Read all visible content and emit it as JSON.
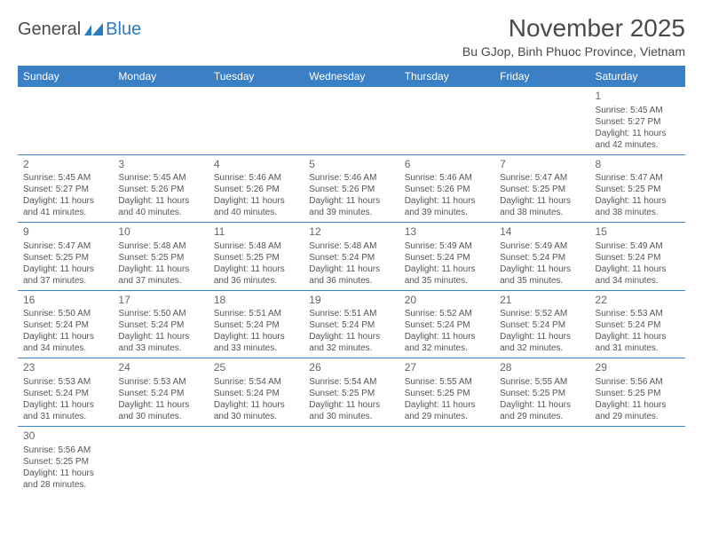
{
  "logo": {
    "text_dark": "General",
    "text_blue": "Blue"
  },
  "title": "November 2025",
  "location": "Bu GJop, Binh Phuoc Province, Vietnam",
  "colors": {
    "header_bg": "#3b7fc4",
    "header_text": "#ffffff",
    "border": "#3b7fc4",
    "text": "#555555",
    "title_text": "#4a4a4a",
    "logo_blue": "#2b7bbf"
  },
  "day_headers": [
    "Sunday",
    "Monday",
    "Tuesday",
    "Wednesday",
    "Thursday",
    "Friday",
    "Saturday"
  ],
  "weeks": [
    [
      null,
      null,
      null,
      null,
      null,
      null,
      {
        "n": "1",
        "sr": "Sunrise: 5:45 AM",
        "ss": "Sunset: 5:27 PM",
        "dl": "Daylight: 11 hours and 42 minutes."
      }
    ],
    [
      {
        "n": "2",
        "sr": "Sunrise: 5:45 AM",
        "ss": "Sunset: 5:27 PM",
        "dl": "Daylight: 11 hours and 41 minutes."
      },
      {
        "n": "3",
        "sr": "Sunrise: 5:45 AM",
        "ss": "Sunset: 5:26 PM",
        "dl": "Daylight: 11 hours and 40 minutes."
      },
      {
        "n": "4",
        "sr": "Sunrise: 5:46 AM",
        "ss": "Sunset: 5:26 PM",
        "dl": "Daylight: 11 hours and 40 minutes."
      },
      {
        "n": "5",
        "sr": "Sunrise: 5:46 AM",
        "ss": "Sunset: 5:26 PM",
        "dl": "Daylight: 11 hours and 39 minutes."
      },
      {
        "n": "6",
        "sr": "Sunrise: 5:46 AM",
        "ss": "Sunset: 5:26 PM",
        "dl": "Daylight: 11 hours and 39 minutes."
      },
      {
        "n": "7",
        "sr": "Sunrise: 5:47 AM",
        "ss": "Sunset: 5:25 PM",
        "dl": "Daylight: 11 hours and 38 minutes."
      },
      {
        "n": "8",
        "sr": "Sunrise: 5:47 AM",
        "ss": "Sunset: 5:25 PM",
        "dl": "Daylight: 11 hours and 38 minutes."
      }
    ],
    [
      {
        "n": "9",
        "sr": "Sunrise: 5:47 AM",
        "ss": "Sunset: 5:25 PM",
        "dl": "Daylight: 11 hours and 37 minutes."
      },
      {
        "n": "10",
        "sr": "Sunrise: 5:48 AM",
        "ss": "Sunset: 5:25 PM",
        "dl": "Daylight: 11 hours and 37 minutes."
      },
      {
        "n": "11",
        "sr": "Sunrise: 5:48 AM",
        "ss": "Sunset: 5:25 PM",
        "dl": "Daylight: 11 hours and 36 minutes."
      },
      {
        "n": "12",
        "sr": "Sunrise: 5:48 AM",
        "ss": "Sunset: 5:24 PM",
        "dl": "Daylight: 11 hours and 36 minutes."
      },
      {
        "n": "13",
        "sr": "Sunrise: 5:49 AM",
        "ss": "Sunset: 5:24 PM",
        "dl": "Daylight: 11 hours and 35 minutes."
      },
      {
        "n": "14",
        "sr": "Sunrise: 5:49 AM",
        "ss": "Sunset: 5:24 PM",
        "dl": "Daylight: 11 hours and 35 minutes."
      },
      {
        "n": "15",
        "sr": "Sunrise: 5:49 AM",
        "ss": "Sunset: 5:24 PM",
        "dl": "Daylight: 11 hours and 34 minutes."
      }
    ],
    [
      {
        "n": "16",
        "sr": "Sunrise: 5:50 AM",
        "ss": "Sunset: 5:24 PM",
        "dl": "Daylight: 11 hours and 34 minutes."
      },
      {
        "n": "17",
        "sr": "Sunrise: 5:50 AM",
        "ss": "Sunset: 5:24 PM",
        "dl": "Daylight: 11 hours and 33 minutes."
      },
      {
        "n": "18",
        "sr": "Sunrise: 5:51 AM",
        "ss": "Sunset: 5:24 PM",
        "dl": "Daylight: 11 hours and 33 minutes."
      },
      {
        "n": "19",
        "sr": "Sunrise: 5:51 AM",
        "ss": "Sunset: 5:24 PM",
        "dl": "Daylight: 11 hours and 32 minutes."
      },
      {
        "n": "20",
        "sr": "Sunrise: 5:52 AM",
        "ss": "Sunset: 5:24 PM",
        "dl": "Daylight: 11 hours and 32 minutes."
      },
      {
        "n": "21",
        "sr": "Sunrise: 5:52 AM",
        "ss": "Sunset: 5:24 PM",
        "dl": "Daylight: 11 hours and 32 minutes."
      },
      {
        "n": "22",
        "sr": "Sunrise: 5:53 AM",
        "ss": "Sunset: 5:24 PM",
        "dl": "Daylight: 11 hours and 31 minutes."
      }
    ],
    [
      {
        "n": "23",
        "sr": "Sunrise: 5:53 AM",
        "ss": "Sunset: 5:24 PM",
        "dl": "Daylight: 11 hours and 31 minutes."
      },
      {
        "n": "24",
        "sr": "Sunrise: 5:53 AM",
        "ss": "Sunset: 5:24 PM",
        "dl": "Daylight: 11 hours and 30 minutes."
      },
      {
        "n": "25",
        "sr": "Sunrise: 5:54 AM",
        "ss": "Sunset: 5:24 PM",
        "dl": "Daylight: 11 hours and 30 minutes."
      },
      {
        "n": "26",
        "sr": "Sunrise: 5:54 AM",
        "ss": "Sunset: 5:25 PM",
        "dl": "Daylight: 11 hours and 30 minutes."
      },
      {
        "n": "27",
        "sr": "Sunrise: 5:55 AM",
        "ss": "Sunset: 5:25 PM",
        "dl": "Daylight: 11 hours and 29 minutes."
      },
      {
        "n": "28",
        "sr": "Sunrise: 5:55 AM",
        "ss": "Sunset: 5:25 PM",
        "dl": "Daylight: 11 hours and 29 minutes."
      },
      {
        "n": "29",
        "sr": "Sunrise: 5:56 AM",
        "ss": "Sunset: 5:25 PM",
        "dl": "Daylight: 11 hours and 29 minutes."
      }
    ],
    [
      {
        "n": "30",
        "sr": "Sunrise: 5:56 AM",
        "ss": "Sunset: 5:25 PM",
        "dl": "Daylight: 11 hours and 28 minutes."
      },
      null,
      null,
      null,
      null,
      null,
      null
    ]
  ]
}
